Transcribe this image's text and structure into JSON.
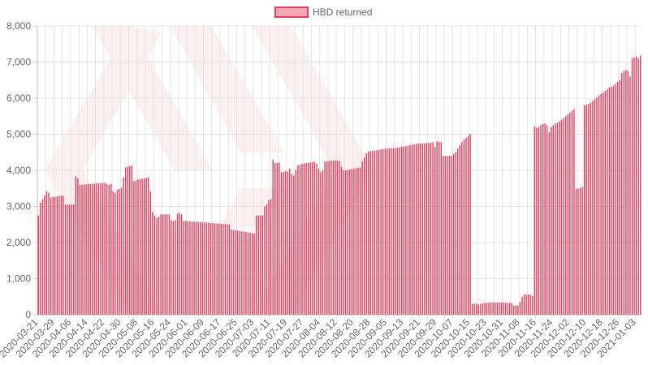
{
  "chart_data": {
    "type": "bar",
    "title": "",
    "xlabel": "",
    "ylabel": "",
    "ylim": [
      0,
      8000
    ],
    "yticks": [
      0,
      1000,
      2000,
      3000,
      4000,
      5000,
      6000,
      7000,
      8000
    ],
    "ytick_labels": [
      "0",
      "1,000",
      "2,000",
      "3,000",
      "4,000",
      "5,000",
      "6,000",
      "7,000",
      "8,000"
    ],
    "grid": true,
    "legend_position": "top-center",
    "x_start": "2020-03-21",
    "x_end": "2021-01-08",
    "tick_labels": [
      "2020-03-21",
      "2020-03-29",
      "2020-04-06",
      "2020-04-14",
      "2020-04-22",
      "2020-04-30",
      "2020-05-08",
      "2020-05-16",
      "2020-05-24",
      "2020-06-01",
      "2020-06-09",
      "2020-06-17",
      "2020-06-25",
      "2020-07-03",
      "2020-07-11",
      "2020-07-19",
      "2020-07-27",
      "2020-08-04",
      "2020-08-12",
      "2020-08-20",
      "2020-08-28",
      "2020-09-05",
      "2020-09-13",
      "2020-09-21",
      "2020-09-29",
      "2020-10-07",
      "2020-10-15",
      "2020-10-23",
      "2020-10-31",
      "2020-11-08",
      "2020-11-16",
      "2020-11-24",
      "2020-12-02",
      "2020-12-10",
      "2020-12-18",
      "2020-12-26",
      "2021-01-03"
    ],
    "series": [
      {
        "name": "HBD returned",
        "color": "#e0405e",
        "fill": "#f7a6b5",
        "values": [
          2750,
          3100,
          3200,
          3300,
          3420,
          3380,
          3250,
          3260,
          3270,
          3280,
          3290,
          3300,
          3290,
          3050,
          3050,
          3050,
          3050,
          3050,
          3830,
          3780,
          3600,
          3600,
          3610,
          3610,
          3620,
          3620,
          3630,
          3630,
          3640,
          3640,
          3650,
          3650,
          3650,
          3620,
          3600,
          3620,
          3420,
          3380,
          3460,
          3480,
          3520,
          3800,
          4080,
          4100,
          4120,
          4130,
          3700,
          3720,
          3750,
          3760,
          3770,
          3780,
          3790,
          3810,
          3420,
          2850,
          2750,
          2680,
          2720,
          2780,
          2780,
          2780,
          2780,
          2780,
          2620,
          2600,
          2620,
          2800,
          2820,
          2780,
          2600,
          2600,
          2590,
          2590,
          2580,
          2580,
          2570,
          2570,
          2560,
          2560,
          2560,
          2550,
          2550,
          2540,
          2540,
          2530,
          2530,
          2520,
          2520,
          2510,
          2510,
          2500,
          2500,
          2360,
          2350,
          2340,
          2330,
          2320,
          2310,
          2300,
          2290,
          2280,
          2270,
          2260,
          2250,
          2750,
          2750,
          2750,
          2750,
          3000,
          3050,
          3180,
          3200,
          4300,
          4200,
          4200,
          4220,
          3950,
          3950,
          3980,
          3970,
          4050,
          3900,
          3850,
          4000,
          4150,
          4150,
          4180,
          4190,
          4200,
          4210,
          4220,
          4230,
          4240,
          4180,
          4050,
          3950,
          4000,
          4250,
          4250,
          4260,
          4270,
          4270,
          4280,
          4270,
          4260,
          4100,
          4000,
          4000,
          4010,
          4020,
          4030,
          4050,
          4060,
          4070,
          4070,
          4250,
          4350,
          4480,
          4520,
          4530,
          4540,
          4550,
          4560,
          4570,
          4580,
          4590,
          4600,
          4600,
          4610,
          4610,
          4620,
          4620,
          4630,
          4640,
          4650,
          4660,
          4670,
          4680,
          4700,
          4710,
          4720,
          4730,
          4740,
          4740,
          4750,
          4750,
          4760,
          4760,
          4770,
          4780,
          4650,
          4800,
          4790,
          4780,
          4400,
          4400,
          4400,
          4400,
          4400,
          4450,
          4500,
          4600,
          4700,
          4780,
          4850,
          4900,
          4960,
          5010,
          300,
          300,
          310,
          280,
          300,
          320,
          330,
          330,
          340,
          340,
          340,
          340,
          340,
          340,
          340,
          340,
          330,
          330,
          330,
          320,
          250,
          250,
          260,
          350,
          500,
          560,
          560,
          560,
          550,
          520,
          5220,
          5180,
          5200,
          5250,
          5280,
          5300,
          5250,
          5050,
          5200,
          5250,
          5300,
          5320,
          5360,
          5400,
          5450,
          5500,
          5550,
          5600,
          5650,
          5700,
          3480,
          3500,
          3520,
          3540,
          5800,
          5820,
          5840,
          5880,
          5920,
          5980,
          6020,
          6080,
          6120,
          6150,
          6200,
          6250,
          6300,
          6320,
          6350,
          6400,
          6450,
          6500,
          6700,
          6750,
          6780,
          6750,
          6600,
          7100,
          7120,
          7150,
          7100,
          7180
        ]
      }
    ]
  }
}
